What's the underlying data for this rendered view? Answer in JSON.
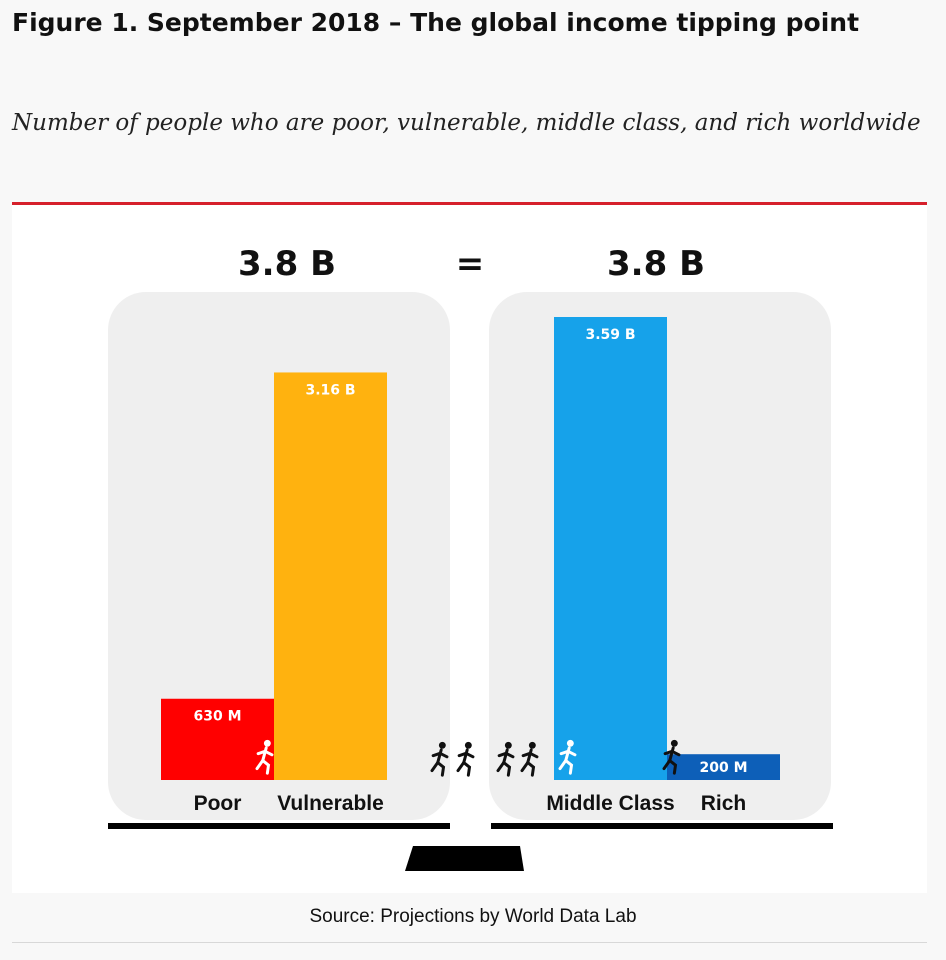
{
  "figure": {
    "title": "Figure 1. September 2018 – The global income tipping point",
    "subtitle": "Number of people who are poor, vulnerable, middle class, and rich worldwide",
    "source": "Source: Projections by World Data Lab"
  },
  "chart_data": {
    "type": "bar",
    "unit": "people",
    "totals": {
      "left": "3.8 B",
      "equals": "=",
      "right": "3.8 B"
    },
    "groups": [
      {
        "total_label": "3.8 B",
        "categories": [
          {
            "name": "Poor",
            "value": 0.63,
            "value_label": "630 M",
            "color": "#ff0000"
          },
          {
            "name": "Vulnerable",
            "value": 3.16,
            "value_label": "3.16 B",
            "color": "#ffb20f"
          }
        ]
      },
      {
        "total_label": "3.8 B",
        "categories": [
          {
            "name": "Middle Class",
            "value": 3.59,
            "value_label": "3.59 B",
            "color": "#16a2ea"
          },
          {
            "name": "Rich",
            "value": 0.2,
            "value_label": "200 M",
            "color": "#0d5fb8"
          }
        ]
      }
    ],
    "ylim": [
      0,
      3.59
    ],
    "colors": {
      "panel": "#efefef",
      "scale_base": "#000000"
    },
    "icons": [
      "runner-icon"
    ]
  }
}
